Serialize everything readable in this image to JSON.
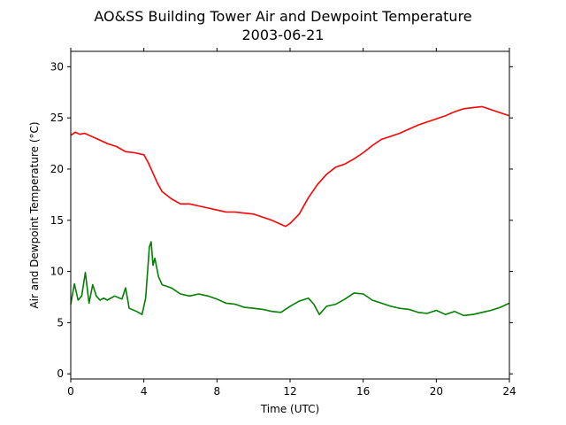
{
  "chart_data": {
    "type": "line",
    "title": "AO&SS Building Tower Air and Dewpoint Temperature",
    "subtitle": "2003-06-21",
    "xlabel": "Time (UTC)",
    "ylabel": "Air and Dewpoint Temperature (°C)",
    "xlim": [
      0,
      24
    ],
    "ylim": [
      -0.5,
      31.5
    ],
    "xticks": [
      0,
      4,
      8,
      12,
      16,
      20,
      24
    ],
    "yticks": [
      0,
      5,
      10,
      15,
      20,
      25,
      30
    ],
    "grid": false,
    "series": [
      {
        "color": "#ff0000",
        "x": [
          0,
          0.25,
          0.5,
          0.75,
          1,
          1.5,
          2,
          2.5,
          3,
          3.5,
          4,
          4.25,
          4.5,
          4.75,
          5,
          5.5,
          6,
          6.5,
          7,
          7.5,
          8,
          8.5,
          9,
          9.5,
          10,
          10.5,
          11,
          11.5,
          11.75,
          12,
          12.5,
          13,
          13.5,
          14,
          14.5,
          15,
          15.5,
          16,
          16.5,
          17,
          17.5,
          18,
          18.5,
          19,
          19.5,
          20,
          20.5,
          21,
          21.5,
          22,
          22.5,
          23,
          23.5,
          24
        ],
        "y": [
          23.3,
          23.6,
          23.4,
          23.5,
          23.3,
          22.9,
          22.5,
          22.2,
          21.7,
          21.6,
          21.4,
          20.6,
          19.6,
          18.6,
          17.8,
          17.1,
          16.6,
          16.6,
          16.4,
          16.2,
          16.0,
          15.8,
          15.8,
          15.7,
          15.6,
          15.3,
          15.0,
          14.6,
          14.4,
          14.7,
          15.6,
          17.2,
          18.5,
          19.5,
          20.2,
          20.5,
          21.0,
          21.6,
          22.3,
          22.9,
          23.2,
          23.5,
          23.9,
          24.3,
          24.6,
          24.9,
          25.2,
          25.6,
          25.9,
          26.0,
          26.1,
          25.8,
          25.5,
          25.2
        ]
      },
      {
        "color": "#008000",
        "x": [
          0,
          0.2,
          0.4,
          0.6,
          0.8,
          1,
          1.2,
          1.4,
          1.6,
          1.8,
          2,
          2.4,
          2.8,
          3,
          3.2,
          3.6,
          3.9,
          4.1,
          4.3,
          4.4,
          4.5,
          4.6,
          4.8,
          5,
          5.5,
          6,
          6.5,
          7,
          7.5,
          8,
          8.5,
          9,
          9.5,
          10,
          10.5,
          11,
          11.5,
          12,
          12.5,
          13,
          13.3,
          13.6,
          14,
          14.5,
          15,
          15.5,
          16,
          16.5,
          17,
          17.5,
          18,
          18.5,
          19,
          19.5,
          20,
          20.5,
          21,
          21.5,
          22,
          22.5,
          23,
          23.5,
          24
        ],
        "y": [
          6.8,
          8.8,
          7.2,
          7.6,
          9.9,
          6.9,
          8.7,
          7.6,
          7.2,
          7.4,
          7.2,
          7.6,
          7.3,
          8.4,
          6.4,
          6.1,
          5.8,
          7.4,
          12.4,
          12.9,
          10.6,
          11.3,
          9.5,
          8.7,
          8.4,
          7.8,
          7.6,
          7.8,
          7.6,
          7.3,
          6.9,
          6.8,
          6.5,
          6.4,
          6.3,
          6.1,
          6.0,
          6.6,
          7.1,
          7.4,
          6.8,
          5.8,
          6.6,
          6.8,
          7.3,
          7.9,
          7.8,
          7.2,
          6.9,
          6.6,
          6.4,
          6.3,
          6.0,
          5.9,
          6.2,
          5.8,
          6.1,
          5.7,
          5.8,
          6.0,
          6.2,
          6.5,
          6.9
        ]
      }
    ]
  }
}
